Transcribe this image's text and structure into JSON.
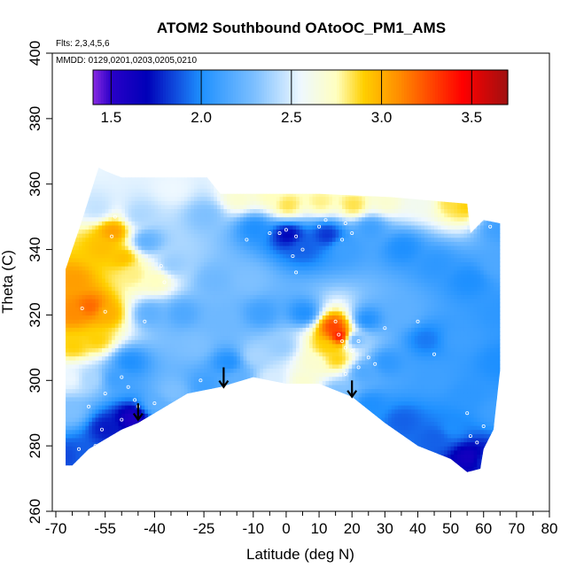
{
  "chart_data": {
    "type": "heatmap",
    "title": "ATOM2 Southbound OAtoOC_PM1_AMS",
    "subtitle_flights": "Flts: 2,3,4,5,6",
    "subtitle_dates": "MMDD: 0129,0201,0203,0205,0210",
    "xlabel": "Latitude (deg N)",
    "ylabel": "Theta (C)",
    "xlim": [
      -70,
      80
    ],
    "ylim": [
      260,
      400
    ],
    "x_ticks": [
      -70,
      -55,
      -40,
      -25,
      -10,
      0,
      10,
      20,
      30,
      40,
      50,
      60,
      70,
      80
    ],
    "x_tick_labels": [
      "-70",
      "-55",
      "-40",
      "-25",
      "-10",
      "0",
      "10",
      "20",
      "30",
      "40",
      "50",
      "60",
      "70",
      "80"
    ],
    "x_minor_ticks": [
      -65,
      -60,
      -50,
      -45,
      -35,
      -30,
      -20,
      -15,
      -5,
      5,
      15,
      25,
      35,
      45,
      55,
      65,
      75
    ],
    "y_ticks": [
      260,
      280,
      300,
      320,
      340,
      360,
      380,
      400
    ],
    "y_tick_labels": [
      "260",
      "280",
      "300",
      "320",
      "340",
      "360",
      "380",
      "400"
    ],
    "colorbar": {
      "range": [
        1.4,
        3.7
      ],
      "ticks": [
        1.5,
        2.0,
        2.5,
        3.0,
        3.5
      ],
      "tick_labels": [
        "1.5",
        "2.0",
        "2.5",
        "3.0",
        "3.5"
      ],
      "stops": [
        {
          "value": 1.4,
          "color": "#8a2be2"
        },
        {
          "value": 1.5,
          "color": "#2a00c8"
        },
        {
          "value": 1.7,
          "color": "#0000b8"
        },
        {
          "value": 2.0,
          "color": "#1e90ff"
        },
        {
          "value": 2.3,
          "color": "#7ec0ff"
        },
        {
          "value": 2.55,
          "color": "#eef8ff"
        },
        {
          "value": 2.75,
          "color": "#ffffc0"
        },
        {
          "value": 2.9,
          "color": "#ffd000"
        },
        {
          "value": 3.1,
          "color": "#ff8c00"
        },
        {
          "value": 3.45,
          "color": "#ff0000"
        },
        {
          "value": 3.7,
          "color": "#a01010"
        }
      ]
    },
    "field_boundary": [
      [
        -67,
        274
      ],
      [
        -67,
        334
      ],
      [
        -62,
        349
      ],
      [
        -57,
        365
      ],
      [
        -55,
        364
      ],
      [
        -50,
        362
      ],
      [
        -24,
        362
      ],
      [
        -20,
        357
      ],
      [
        10,
        357
      ],
      [
        32,
        356
      ],
      [
        55,
        354
      ],
      [
        56,
        345
      ],
      [
        60,
        349
      ],
      [
        65,
        348
      ],
      [
        65,
        303
      ],
      [
        64,
        294
      ],
      [
        63,
        285
      ],
      [
        60,
        279
      ],
      [
        59,
        273
      ],
      [
        55,
        272
      ],
      [
        50,
        276
      ],
      [
        40,
        280
      ],
      [
        30,
        287
      ],
      [
        20,
        295
      ],
      [
        10,
        299
      ],
      [
        0,
        299
      ],
      [
        -10,
        301
      ],
      [
        -20,
        298
      ],
      [
        -30,
        296
      ],
      [
        -40,
        290
      ],
      [
        -45,
        287
      ],
      [
        -50,
        285
      ],
      [
        -55,
        282
      ],
      [
        -60,
        279
      ],
      [
        -65,
        274
      ]
    ],
    "value_samples": [
      {
        "lat": -67,
        "theta": 276,
        "value": 1.85
      },
      {
        "lat": -62,
        "theta": 276,
        "value": 1.9
      },
      {
        "lat": -55,
        "theta": 285,
        "value": 1.75
      },
      {
        "lat": -47,
        "theta": 288,
        "value": 1.55
      },
      {
        "lat": -40,
        "theta": 292,
        "value": 2.2
      },
      {
        "lat": -35,
        "theta": 296,
        "value": 2.3
      },
      {
        "lat": -25,
        "theta": 298,
        "value": 2.1
      },
      {
        "lat": -15,
        "theta": 300,
        "value": 2.2
      },
      {
        "lat": -5,
        "theta": 300,
        "value": 2.5
      },
      {
        "lat": 5,
        "theta": 299,
        "value": 2.7
      },
      {
        "lat": 15,
        "theta": 296,
        "value": 2.3
      },
      {
        "lat": 25,
        "theta": 292,
        "value": 2.0
      },
      {
        "lat": 35,
        "theta": 287,
        "value": 1.9
      },
      {
        "lat": 45,
        "theta": 282,
        "value": 1.9
      },
      {
        "lat": 55,
        "theta": 276,
        "value": 1.6
      },
      {
        "lat": 60,
        "theta": 275,
        "value": 1.8
      },
      {
        "lat": 63,
        "theta": 290,
        "value": 2.1
      },
      {
        "lat": 64,
        "theta": 305,
        "value": 2.0
      },
      {
        "lat": 64,
        "theta": 320,
        "value": 2.05
      },
      {
        "lat": 64,
        "theta": 335,
        "value": 2.15
      },
      {
        "lat": 64,
        "theta": 346,
        "value": 2.1
      },
      {
        "lat": -66,
        "theta": 290,
        "value": 2.3
      },
      {
        "lat": -66,
        "theta": 300,
        "value": 2.55
      },
      {
        "lat": -65,
        "theta": 310,
        "value": 2.9
      },
      {
        "lat": -65,
        "theta": 320,
        "value": 3.1
      },
      {
        "lat": -65,
        "theta": 330,
        "value": 3.05
      },
      {
        "lat": -60,
        "theta": 322,
        "value": 3.2
      },
      {
        "lat": -55,
        "theta": 320,
        "value": 3.0
      },
      {
        "lat": -58,
        "theta": 312,
        "value": 2.9
      },
      {
        "lat": -60,
        "theta": 300,
        "value": 2.4
      },
      {
        "lat": -52,
        "theta": 300,
        "value": 2.1
      },
      {
        "lat": -48,
        "theta": 305,
        "value": 2.0
      },
      {
        "lat": -56,
        "theta": 340,
        "value": 2.95
      },
      {
        "lat": -53,
        "theta": 345,
        "value": 3.05
      },
      {
        "lat": -50,
        "theta": 337,
        "value": 2.95
      },
      {
        "lat": -47,
        "theta": 332,
        "value": 2.8
      },
      {
        "lat": -58,
        "theta": 352,
        "value": 2.45
      },
      {
        "lat": -45,
        "theta": 350,
        "value": 2.4
      },
      {
        "lat": -43,
        "theta": 342,
        "value": 2.2
      },
      {
        "lat": -40,
        "theta": 330,
        "value": 2.75
      },
      {
        "lat": -42,
        "theta": 320,
        "value": 2.2
      },
      {
        "lat": -35,
        "theta": 335,
        "value": 2.35
      },
      {
        "lat": -32,
        "theta": 320,
        "value": 2.15
      },
      {
        "lat": -28,
        "theta": 310,
        "value": 2.3
      },
      {
        "lat": -22,
        "theta": 330,
        "value": 2.25
      },
      {
        "lat": -25,
        "theta": 350,
        "value": 2.3
      },
      {
        "lat": -35,
        "theta": 358,
        "value": 2.55
      },
      {
        "lat": -15,
        "theta": 355,
        "value": 2.7
      },
      {
        "lat": -5,
        "theta": 356,
        "value": 2.75
      },
      {
        "lat": 0,
        "theta": 353,
        "value": 2.85
      },
      {
        "lat": 10,
        "theta": 354,
        "value": 2.8
      },
      {
        "lat": 20,
        "theta": 353,
        "value": 2.85
      },
      {
        "lat": 30,
        "theta": 354,
        "value": 2.7
      },
      {
        "lat": 40,
        "theta": 354,
        "value": 2.6
      },
      {
        "lat": 50,
        "theta": 354,
        "value": 2.85
      },
      {
        "lat": 54,
        "theta": 353,
        "value": 2.9
      },
      {
        "lat": -10,
        "theta": 346,
        "value": 2.0
      },
      {
        "lat": 0,
        "theta": 344,
        "value": 1.7
      },
      {
        "lat": 5,
        "theta": 340,
        "value": 1.9
      },
      {
        "lat": 12,
        "theta": 344,
        "value": 1.8
      },
      {
        "lat": 17,
        "theta": 340,
        "value": 2.1
      },
      {
        "lat": 25,
        "theta": 346,
        "value": 2.1
      },
      {
        "lat": 35,
        "theta": 340,
        "value": 2.0
      },
      {
        "lat": 45,
        "theta": 335,
        "value": 2.05
      },
      {
        "lat": 55,
        "theta": 330,
        "value": 2.0
      },
      {
        "lat": -12,
        "theta": 330,
        "value": 2.3
      },
      {
        "lat": -8,
        "theta": 320,
        "value": 2.1
      },
      {
        "lat": -2,
        "theta": 310,
        "value": 2.35
      },
      {
        "lat": 5,
        "theta": 320,
        "value": 2.0
      },
      {
        "lat": 8,
        "theta": 305,
        "value": 2.7
      },
      {
        "lat": 12,
        "theta": 310,
        "value": 2.9
      },
      {
        "lat": 14,
        "theta": 316,
        "value": 3.3
      },
      {
        "lat": 16,
        "theta": 313,
        "value": 3.5
      },
      {
        "lat": 15,
        "theta": 306,
        "value": 2.9
      },
      {
        "lat": 20,
        "theta": 312,
        "value": 2.2
      },
      {
        "lat": 24,
        "theta": 318,
        "value": 2.0
      },
      {
        "lat": 23,
        "theta": 302,
        "value": 2.15
      },
      {
        "lat": 30,
        "theta": 305,
        "value": 2.05
      },
      {
        "lat": 35,
        "theta": 320,
        "value": 2.2
      },
      {
        "lat": 42,
        "theta": 312,
        "value": 1.95
      },
      {
        "lat": 45,
        "theta": 300,
        "value": 2.1
      },
      {
        "lat": 52,
        "theta": 312,
        "value": 2.1
      },
      {
        "lat": 55,
        "theta": 295,
        "value": 2.05
      },
      {
        "lat": 50,
        "theta": 285,
        "value": 2.0
      },
      {
        "lat": -20,
        "theta": 318,
        "value": 2.25
      },
      {
        "lat": -18,
        "theta": 305,
        "value": 2.0
      },
      {
        "lat": -10,
        "theta": 307,
        "value": 2.4
      }
    ],
    "observation_points": [
      [
        -53,
        344
      ],
      [
        -52,
        350
      ],
      [
        -62,
        322
      ],
      [
        -55,
        321
      ],
      [
        -50,
        301
      ],
      [
        -48,
        298
      ],
      [
        -46,
        294
      ],
      [
        -50,
        288
      ],
      [
        -56,
        285
      ],
      [
        -45,
        292
      ],
      [
        -40,
        293
      ],
      [
        -43,
        318
      ],
      [
        -37,
        330
      ],
      [
        -38,
        335
      ],
      [
        -26,
        300
      ],
      [
        -12,
        343
      ],
      [
        -5,
        345
      ],
      [
        -2,
        345
      ],
      [
        0,
        346
      ],
      [
        3,
        344
      ],
      [
        5,
        340
      ],
      [
        10,
        347
      ],
      [
        12,
        349
      ],
      [
        18,
        348
      ],
      [
        20,
        345
      ],
      [
        17,
        343
      ],
      [
        2,
        338
      ],
      [
        3,
        333
      ],
      [
        15,
        318
      ],
      [
        16,
        314
      ],
      [
        17,
        312
      ],
      [
        18,
        310
      ],
      [
        20,
        309
      ],
      [
        22,
        312
      ],
      [
        25,
        307
      ],
      [
        27,
        305
      ],
      [
        30,
        316
      ],
      [
        18,
        302
      ],
      [
        22,
        304
      ],
      [
        40,
        318
      ],
      [
        45,
        308
      ],
      [
        55,
        290
      ],
      [
        56,
        283
      ],
      [
        58,
        281
      ],
      [
        60,
        286
      ],
      [
        62,
        347
      ],
      [
        -58,
        280
      ],
      [
        -63,
        279
      ],
      [
        -55,
        296
      ],
      [
        -60,
        292
      ]
    ],
    "arrows": [
      {
        "lat": -45,
        "theta_start": 293,
        "theta_end": 288
      },
      {
        "lat": -19,
        "theta_start": 304,
        "theta_end": 298
      },
      {
        "lat": 20,
        "theta_start": 300,
        "theta_end": 295
      }
    ]
  }
}
